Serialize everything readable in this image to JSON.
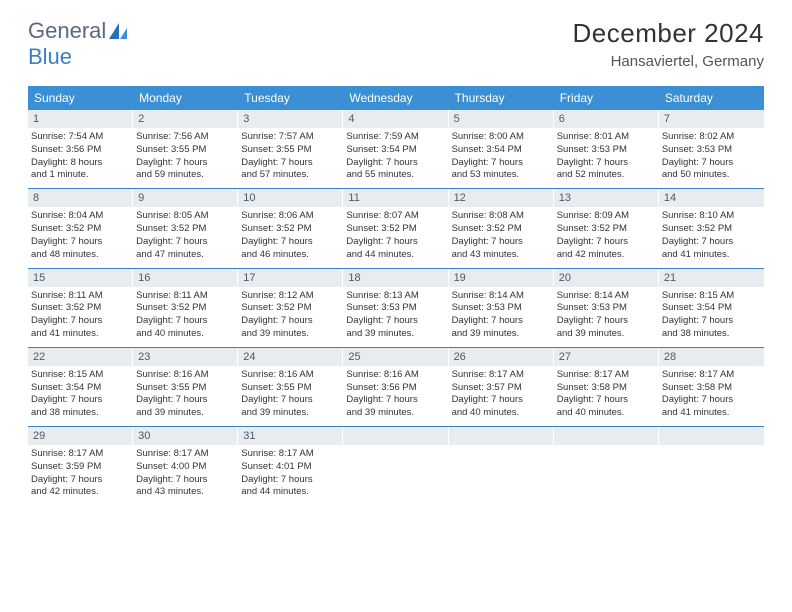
{
  "brand": {
    "part1": "General",
    "part2": "Blue"
  },
  "title": "December 2024",
  "location": "Hansaviertel, Germany",
  "colors": {
    "header_bg": "#3b8fd4",
    "header_text": "#ffffff",
    "daynum_bg": "#e8ecef",
    "daynum_text": "#4a5a6a",
    "rule": "#3b7fc4",
    "body_text": "#333333",
    "logo_gray": "#5a6a7a",
    "logo_blue": "#3b7fc4"
  },
  "fonts": {
    "title_size_pt": 20,
    "location_size_pt": 11,
    "dayhead_size_pt": 9,
    "daynum_size_pt": 8,
    "detail_size_pt": 7
  },
  "day_headers": [
    "Sunday",
    "Monday",
    "Tuesday",
    "Wednesday",
    "Thursday",
    "Friday",
    "Saturday"
  ],
  "weeks": [
    [
      {
        "n": "1",
        "sr": "Sunrise: 7:54 AM",
        "ss": "Sunset: 3:56 PM",
        "dl1": "Daylight: 8 hours",
        "dl2": "and 1 minute."
      },
      {
        "n": "2",
        "sr": "Sunrise: 7:56 AM",
        "ss": "Sunset: 3:55 PM",
        "dl1": "Daylight: 7 hours",
        "dl2": "and 59 minutes."
      },
      {
        "n": "3",
        "sr": "Sunrise: 7:57 AM",
        "ss": "Sunset: 3:55 PM",
        "dl1": "Daylight: 7 hours",
        "dl2": "and 57 minutes."
      },
      {
        "n": "4",
        "sr": "Sunrise: 7:59 AM",
        "ss": "Sunset: 3:54 PM",
        "dl1": "Daylight: 7 hours",
        "dl2": "and 55 minutes."
      },
      {
        "n": "5",
        "sr": "Sunrise: 8:00 AM",
        "ss": "Sunset: 3:54 PM",
        "dl1": "Daylight: 7 hours",
        "dl2": "and 53 minutes."
      },
      {
        "n": "6",
        "sr": "Sunrise: 8:01 AM",
        "ss": "Sunset: 3:53 PM",
        "dl1": "Daylight: 7 hours",
        "dl2": "and 52 minutes."
      },
      {
        "n": "7",
        "sr": "Sunrise: 8:02 AM",
        "ss": "Sunset: 3:53 PM",
        "dl1": "Daylight: 7 hours",
        "dl2": "and 50 minutes."
      }
    ],
    [
      {
        "n": "8",
        "sr": "Sunrise: 8:04 AM",
        "ss": "Sunset: 3:52 PM",
        "dl1": "Daylight: 7 hours",
        "dl2": "and 48 minutes."
      },
      {
        "n": "9",
        "sr": "Sunrise: 8:05 AM",
        "ss": "Sunset: 3:52 PM",
        "dl1": "Daylight: 7 hours",
        "dl2": "and 47 minutes."
      },
      {
        "n": "10",
        "sr": "Sunrise: 8:06 AM",
        "ss": "Sunset: 3:52 PM",
        "dl1": "Daylight: 7 hours",
        "dl2": "and 46 minutes."
      },
      {
        "n": "11",
        "sr": "Sunrise: 8:07 AM",
        "ss": "Sunset: 3:52 PM",
        "dl1": "Daylight: 7 hours",
        "dl2": "and 44 minutes."
      },
      {
        "n": "12",
        "sr": "Sunrise: 8:08 AM",
        "ss": "Sunset: 3:52 PM",
        "dl1": "Daylight: 7 hours",
        "dl2": "and 43 minutes."
      },
      {
        "n": "13",
        "sr": "Sunrise: 8:09 AM",
        "ss": "Sunset: 3:52 PM",
        "dl1": "Daylight: 7 hours",
        "dl2": "and 42 minutes."
      },
      {
        "n": "14",
        "sr": "Sunrise: 8:10 AM",
        "ss": "Sunset: 3:52 PM",
        "dl1": "Daylight: 7 hours",
        "dl2": "and 41 minutes."
      }
    ],
    [
      {
        "n": "15",
        "sr": "Sunrise: 8:11 AM",
        "ss": "Sunset: 3:52 PM",
        "dl1": "Daylight: 7 hours",
        "dl2": "and 41 minutes."
      },
      {
        "n": "16",
        "sr": "Sunrise: 8:11 AM",
        "ss": "Sunset: 3:52 PM",
        "dl1": "Daylight: 7 hours",
        "dl2": "and 40 minutes."
      },
      {
        "n": "17",
        "sr": "Sunrise: 8:12 AM",
        "ss": "Sunset: 3:52 PM",
        "dl1": "Daylight: 7 hours",
        "dl2": "and 39 minutes."
      },
      {
        "n": "18",
        "sr": "Sunrise: 8:13 AM",
        "ss": "Sunset: 3:53 PM",
        "dl1": "Daylight: 7 hours",
        "dl2": "and 39 minutes."
      },
      {
        "n": "19",
        "sr": "Sunrise: 8:14 AM",
        "ss": "Sunset: 3:53 PM",
        "dl1": "Daylight: 7 hours",
        "dl2": "and 39 minutes."
      },
      {
        "n": "20",
        "sr": "Sunrise: 8:14 AM",
        "ss": "Sunset: 3:53 PM",
        "dl1": "Daylight: 7 hours",
        "dl2": "and 39 minutes."
      },
      {
        "n": "21",
        "sr": "Sunrise: 8:15 AM",
        "ss": "Sunset: 3:54 PM",
        "dl1": "Daylight: 7 hours",
        "dl2": "and 38 minutes."
      }
    ],
    [
      {
        "n": "22",
        "sr": "Sunrise: 8:15 AM",
        "ss": "Sunset: 3:54 PM",
        "dl1": "Daylight: 7 hours",
        "dl2": "and 38 minutes."
      },
      {
        "n": "23",
        "sr": "Sunrise: 8:16 AM",
        "ss": "Sunset: 3:55 PM",
        "dl1": "Daylight: 7 hours",
        "dl2": "and 39 minutes."
      },
      {
        "n": "24",
        "sr": "Sunrise: 8:16 AM",
        "ss": "Sunset: 3:55 PM",
        "dl1": "Daylight: 7 hours",
        "dl2": "and 39 minutes."
      },
      {
        "n": "25",
        "sr": "Sunrise: 8:16 AM",
        "ss": "Sunset: 3:56 PM",
        "dl1": "Daylight: 7 hours",
        "dl2": "and 39 minutes."
      },
      {
        "n": "26",
        "sr": "Sunrise: 8:17 AM",
        "ss": "Sunset: 3:57 PM",
        "dl1": "Daylight: 7 hours",
        "dl2": "and 40 minutes."
      },
      {
        "n": "27",
        "sr": "Sunrise: 8:17 AM",
        "ss": "Sunset: 3:58 PM",
        "dl1": "Daylight: 7 hours",
        "dl2": "and 40 minutes."
      },
      {
        "n": "28",
        "sr": "Sunrise: 8:17 AM",
        "ss": "Sunset: 3:58 PM",
        "dl1": "Daylight: 7 hours",
        "dl2": "and 41 minutes."
      }
    ],
    [
      {
        "n": "29",
        "sr": "Sunrise: 8:17 AM",
        "ss": "Sunset: 3:59 PM",
        "dl1": "Daylight: 7 hours",
        "dl2": "and 42 minutes."
      },
      {
        "n": "30",
        "sr": "Sunrise: 8:17 AM",
        "ss": "Sunset: 4:00 PM",
        "dl1": "Daylight: 7 hours",
        "dl2": "and 43 minutes."
      },
      {
        "n": "31",
        "sr": "Sunrise: 8:17 AM",
        "ss": "Sunset: 4:01 PM",
        "dl1": "Daylight: 7 hours",
        "dl2": "and 44 minutes."
      },
      {
        "n": "",
        "sr": "",
        "ss": "",
        "dl1": "",
        "dl2": "",
        "empty": true
      },
      {
        "n": "",
        "sr": "",
        "ss": "",
        "dl1": "",
        "dl2": "",
        "empty": true
      },
      {
        "n": "",
        "sr": "",
        "ss": "",
        "dl1": "",
        "dl2": "",
        "empty": true
      },
      {
        "n": "",
        "sr": "",
        "ss": "",
        "dl1": "",
        "dl2": "",
        "empty": true
      }
    ]
  ]
}
